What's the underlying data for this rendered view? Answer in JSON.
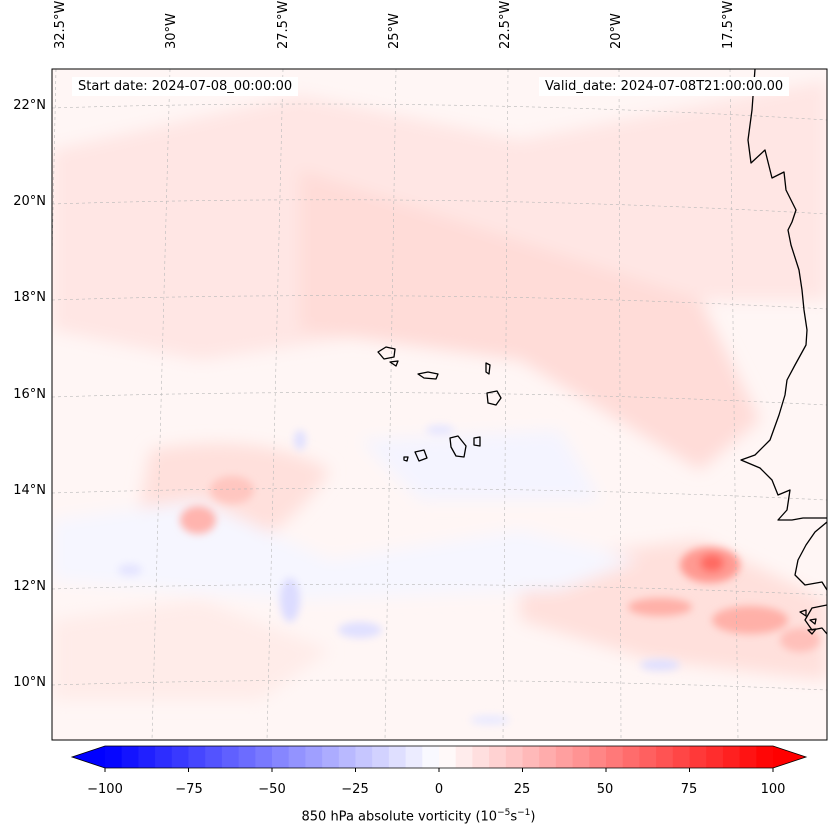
{
  "map": {
    "start_date": "Start date: 2024-07-08_00:00:00",
    "valid_date": "Valid_date: 2024-07-08T21:00:00.00",
    "lon_labels": [
      "32.5°W",
      "30°W",
      "27.5°W",
      "25°W",
      "22.5°W",
      "20°W",
      "17.5°W"
    ],
    "lat_labels": [
      "22°N",
      "20°N",
      "18°N",
      "16°N",
      "14°N",
      "12°N",
      "10°N"
    ],
    "extent": {
      "lon_min": -33.0,
      "lon_max": -16.0,
      "lat_min": 8.8,
      "lat_max": 22.8
    },
    "colors": {
      "positive": "#ff0000",
      "negative": "#0000ff",
      "coast": "#000000",
      "grid": "#b0b0b0"
    }
  },
  "colorbar": {
    "label_prefix": "850 hPa absolute vorticity (10",
    "ticks": [
      "−100",
      "−75",
      "−50",
      "−25",
      "0",
      "25",
      "50",
      "75",
      "100"
    ],
    "min": -100,
    "max": 100,
    "levels": 40
  }
}
